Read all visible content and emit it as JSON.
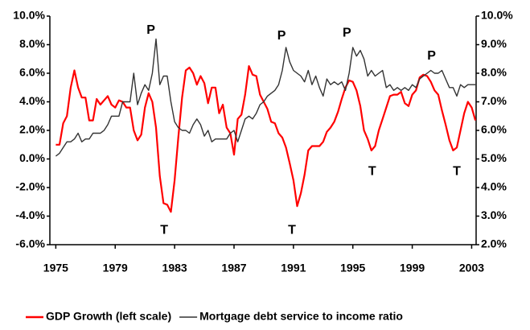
{
  "chart_data": {
    "type": "line",
    "x": [
      1975,
      1975.25,
      1975.5,
      1975.75,
      1976,
      1976.25,
      1976.5,
      1976.75,
      1977,
      1977.25,
      1977.5,
      1977.75,
      1978,
      1978.25,
      1978.5,
      1978.75,
      1979,
      1979.25,
      1979.5,
      1979.75,
      1980,
      1980.25,
      1980.5,
      1980.75,
      1981,
      1981.25,
      1981.5,
      1981.75,
      1982,
      1982.25,
      1982.5,
      1982.75,
      1983,
      1983.25,
      1983.5,
      1983.75,
      1984,
      1984.25,
      1984.5,
      1984.75,
      1985,
      1985.25,
      1985.5,
      1985.75,
      1986,
      1986.25,
      1986.5,
      1986.75,
      1987,
      1987.25,
      1987.5,
      1987.75,
      1988,
      1988.25,
      1988.5,
      1988.75,
      1989,
      1989.25,
      1989.5,
      1989.75,
      1990,
      1990.25,
      1990.5,
      1990.75,
      1991,
      1991.25,
      1991.5,
      1991.75,
      1992,
      1992.25,
      1992.5,
      1992.75,
      1993,
      1993.25,
      1993.5,
      1993.75,
      1994,
      1994.25,
      1994.5,
      1994.75,
      1995,
      1995.25,
      1995.5,
      1995.75,
      1996,
      1996.25,
      1996.5,
      1996.75,
      1997,
      1997.25,
      1997.5,
      1997.75,
      1998,
      1998.25,
      1998.5,
      1998.75,
      1999,
      1999.25,
      1999.5,
      1999.75,
      2000,
      2000.25,
      2000.5,
      2000.75,
      2001,
      2001.25,
      2001.5,
      2001.75,
      2002,
      2002.25,
      2002.5,
      2002.75,
      2003,
      2003.25
    ],
    "series": [
      {
        "name": "GDP Growth (left scale)",
        "color": "#ff0000",
        "axis": "y",
        "values": [
          1.0,
          1.0,
          2.5,
          3.0,
          5.0,
          6.2,
          5.0,
          4.3,
          4.3,
          2.7,
          2.7,
          4.2,
          3.8,
          4.1,
          4.4,
          3.8,
          3.6,
          4.1,
          4.0,
          3.6,
          3.6,
          2.0,
          1.3,
          1.7,
          3.6,
          4.6,
          4.0,
          2.2,
          -1.2,
          -3.1,
          -3.2,
          -3.7,
          -1.5,
          1.5,
          4.3,
          6.2,
          6.4,
          6.0,
          5.2,
          5.8,
          5.3,
          3.9,
          5.0,
          5.0,
          3.2,
          3.8,
          2.2,
          1.8,
          0.3,
          2.8,
          3.1,
          4.5,
          6.5,
          5.9,
          5.8,
          4.5,
          4.0,
          3.5,
          2.6,
          2.5,
          1.8,
          1.5,
          0.8,
          -0.3,
          -1.5,
          -3.3,
          -2.4,
          -1.1,
          0.6,
          0.9,
          0.9,
          0.9,
          1.2,
          1.9,
          2.2,
          2.6,
          3.3,
          4.2,
          5.0,
          5.5,
          5.4,
          4.8,
          3.7,
          2.0,
          1.4,
          0.6,
          0.9,
          2.0,
          2.8,
          3.6,
          4.4,
          4.5,
          4.5,
          4.7,
          3.9,
          3.7,
          4.5,
          4.8,
          5.7,
          5.9,
          5.8,
          5.4,
          4.8,
          4.5,
          3.4,
          2.4,
          1.3,
          0.6,
          0.8,
          2.0,
          3.2,
          4.0,
          3.6,
          2.7
        ]
      },
      {
        "name": "Mortgage debt service to income ratio",
        "color": "#333333",
        "axis": "y2",
        "values": [
          5.1,
          5.2,
          5.4,
          5.6,
          5.6,
          5.7,
          5.9,
          5.6,
          5.7,
          5.7,
          5.9,
          5.9,
          5.9,
          6.0,
          6.2,
          6.5,
          6.5,
          6.5,
          7.0,
          7.0,
          7.0,
          8.0,
          6.9,
          7.3,
          7.6,
          7.4,
          8.0,
          9.2,
          7.6,
          7.9,
          7.9,
          7.0,
          6.3,
          6.1,
          6.0,
          6.0,
          5.9,
          6.2,
          6.4,
          6.2,
          5.8,
          6.0,
          5.6,
          5.7,
          5.7,
          5.7,
          5.7,
          5.9,
          6.0,
          5.6,
          6.0,
          6.4,
          6.5,
          6.4,
          6.6,
          6.9,
          7.0,
          7.2,
          7.3,
          7.4,
          7.6,
          8.1,
          8.9,
          8.4,
          8.1,
          8.0,
          7.9,
          7.7,
          8.1,
          7.6,
          7.9,
          7.5,
          7.2,
          7.8,
          7.6,
          7.7,
          7.6,
          7.7,
          7.4,
          8.0,
          8.9,
          8.6,
          8.8,
          8.5,
          7.9,
          8.1,
          7.9,
          8.0,
          8.1,
          7.5,
          7.6,
          7.4,
          7.5,
          7.4,
          7.5,
          7.4,
          7.6,
          7.5,
          7.8,
          7.9,
          8.0,
          8.1,
          8.0,
          8.0,
          8.1,
          7.8,
          7.5,
          7.5,
          7.2,
          7.6,
          7.5,
          7.6,
          7.6,
          7.6
        ]
      }
    ],
    "xlim": [
      1974.6,
      2003.3
    ],
    "xticks": [
      1975,
      1979,
      1983,
      1987,
      1991,
      1995,
      1999,
      2003
    ],
    "ylim": [
      -6,
      10
    ],
    "yticks": [
      {
        "value": -6,
        "label": "-6.0%"
      },
      {
        "value": -4,
        "label": "-4.0%"
      },
      {
        "value": -2,
        "label": "-2.0%"
      },
      {
        "value": 0,
        "label": "0.0%"
      },
      {
        "value": 2,
        "label": "2.0%"
      },
      {
        "value": 4,
        "label": "4.0%"
      },
      {
        "value": 6,
        "label": "6.0%"
      },
      {
        "value": 8,
        "label": "8.0%"
      },
      {
        "value": 10,
        "label": "10.0%"
      }
    ],
    "y2lim": [
      2,
      10
    ],
    "y2ticks": [
      {
        "value": 2,
        "label": "2.0%"
      },
      {
        "value": 3,
        "label": "3.0%"
      },
      {
        "value": 4,
        "label": "4.0%"
      },
      {
        "value": 5,
        "label": "5.0%"
      },
      {
        "value": 6,
        "label": "6.0%"
      },
      {
        "value": 7,
        "label": "7.0%"
      },
      {
        "value": 8,
        "label": "8.0%"
      },
      {
        "value": 9,
        "label": "9.0%"
      },
      {
        "value": 10,
        "label": "10.0%"
      }
    ],
    "grid": false,
    "legend": "bottom",
    "annotations": [
      {
        "text": "P",
        "x": 1981.4,
        "y": 9.0
      },
      {
        "text": "P",
        "x": 1990.2,
        "y": 8.6
      },
      {
        "text": "P",
        "x": 1994.6,
        "y": 8.8
      },
      {
        "text": "P",
        "x": 2000.3,
        "y": 7.2
      },
      {
        "text": "T",
        "x": 1982.3,
        "y": -5.0
      },
      {
        "text": "T",
        "x": 1990.9,
        "y": -5.0
      },
      {
        "text": "T",
        "x": 1996.3,
        "y": -0.9
      },
      {
        "text": "T",
        "x": 2002.0,
        "y": -0.9
      }
    ]
  }
}
